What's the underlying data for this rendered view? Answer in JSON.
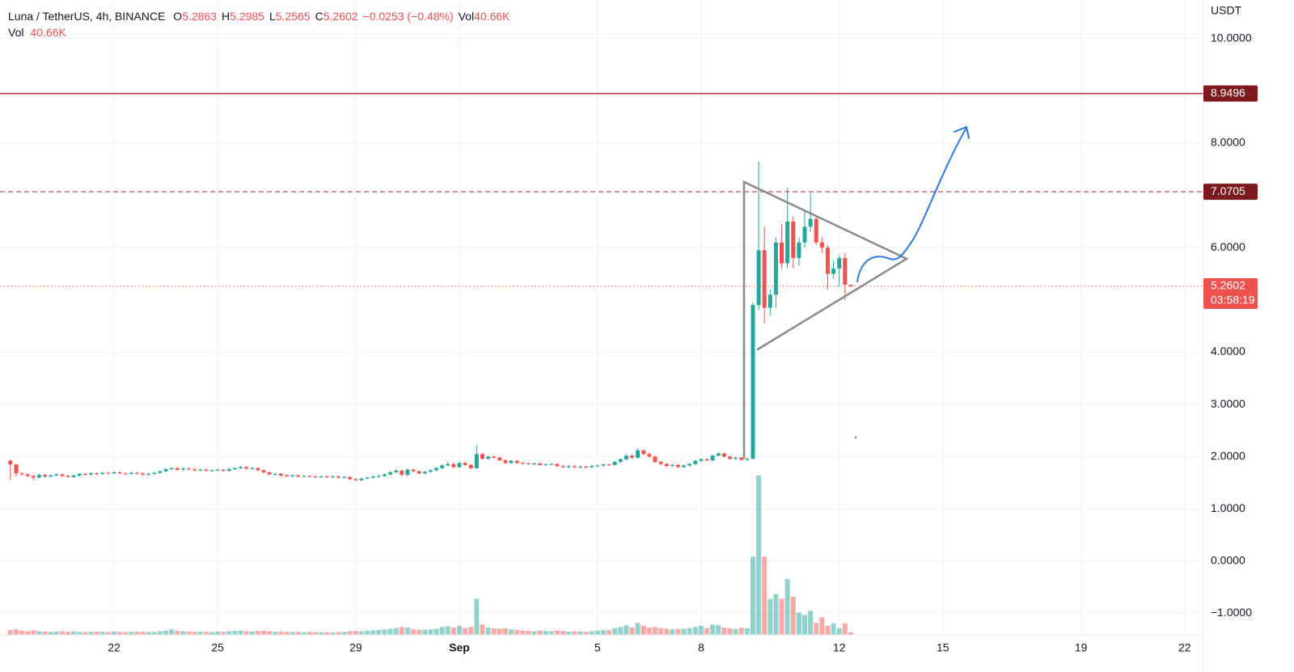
{
  "header": {
    "symbol": "Luna / TetherUS, 4h, BINANCE",
    "items": [
      {
        "key": "O",
        "value": "5.2863"
      },
      {
        "key": "H",
        "value": "5.2985"
      },
      {
        "key": "L",
        "value": "5.2565"
      },
      {
        "key": "C",
        "value": "5.2602"
      },
      {
        "key": "",
        "value": "−0.0253 (−0.48%)"
      },
      {
        "key": "Vol",
        "value": "40.66K"
      }
    ],
    "volume_key": "Vol",
    "volume_value": "40.66K"
  },
  "chart_data": {
    "type": "candlestick",
    "currency": "USDT",
    "ylim": [
      -1.41,
      10.74
    ],
    "yticks": [
      {
        "value": 10,
        "label": "10.0000"
      },
      {
        "value": 8,
        "label": "8.0000"
      },
      {
        "value": 6,
        "label": "6.0000"
      },
      {
        "value": 4,
        "label": "4.0000"
      },
      {
        "value": 3,
        "label": "3.0000"
      },
      {
        "value": 2,
        "label": "2.0000"
      },
      {
        "value": 1,
        "label": "1.0000"
      },
      {
        "value": 0,
        "label": "0.0000"
      },
      {
        "value": -1,
        "label": "−1.0000"
      }
    ],
    "xlim": [
      -1.81,
      207.27
    ],
    "xticks": [
      {
        "value": 18,
        "label": "22"
      },
      {
        "value": 36,
        "label": "25"
      },
      {
        "value": 60,
        "label": "29"
      },
      {
        "value": 78,
        "label": "Sep"
      },
      {
        "value": 102,
        "label": "5"
      },
      {
        "value": 120,
        "label": "8"
      },
      {
        "value": 144,
        "label": "12"
      },
      {
        "value": 162,
        "label": "15"
      },
      {
        "value": 186,
        "label": "19"
      },
      {
        "value": 204,
        "label": "22"
      }
    ],
    "grid": true,
    "up_color": "#26a69a",
    "down_color": "#ef5350",
    "ohlc": [
      [
        1.92,
        1.95,
        1.55,
        1.85
      ],
      [
        1.85,
        1.86,
        1.62,
        1.68
      ],
      [
        1.68,
        1.7,
        1.64,
        1.66
      ],
      [
        1.66,
        1.68,
        1.61,
        1.63
      ],
      [
        1.63,
        1.65,
        1.55,
        1.6
      ],
      [
        1.6,
        1.67,
        1.58,
        1.65
      ],
      [
        1.65,
        1.67,
        1.6,
        1.62
      ],
      [
        1.62,
        1.66,
        1.6,
        1.64
      ],
      [
        1.64,
        1.68,
        1.62,
        1.66
      ],
      [
        1.66,
        1.68,
        1.61,
        1.63
      ],
      [
        1.63,
        1.65,
        1.59,
        1.61
      ],
      [
        1.61,
        1.66,
        1.59,
        1.64
      ],
      [
        1.64,
        1.69,
        1.62,
        1.67
      ],
      [
        1.67,
        1.69,
        1.64,
        1.66
      ],
      [
        1.66,
        1.7,
        1.64,
        1.68
      ],
      [
        1.68,
        1.7,
        1.65,
        1.67
      ],
      [
        1.67,
        1.71,
        1.65,
        1.69
      ],
      [
        1.69,
        1.71,
        1.66,
        1.68
      ],
      [
        1.68,
        1.72,
        1.66,
        1.7
      ],
      [
        1.7,
        1.72,
        1.66,
        1.68
      ],
      [
        1.68,
        1.7,
        1.65,
        1.67
      ],
      [
        1.67,
        1.71,
        1.65,
        1.69
      ],
      [
        1.69,
        1.71,
        1.66,
        1.68
      ],
      [
        1.68,
        1.7,
        1.64,
        1.66
      ],
      [
        1.66,
        1.69,
        1.64,
        1.67
      ],
      [
        1.67,
        1.71,
        1.65,
        1.69
      ],
      [
        1.69,
        1.74,
        1.67,
        1.72
      ],
      [
        1.72,
        1.78,
        1.7,
        1.76
      ],
      [
        1.76,
        1.8,
        1.74,
        1.78
      ],
      [
        1.78,
        1.8,
        1.73,
        1.75
      ],
      [
        1.75,
        1.79,
        1.73,
        1.77
      ],
      [
        1.77,
        1.79,
        1.74,
        1.76
      ],
      [
        1.76,
        1.78,
        1.72,
        1.74
      ],
      [
        1.74,
        1.77,
        1.72,
        1.75
      ],
      [
        1.75,
        1.77,
        1.71,
        1.73
      ],
      [
        1.73,
        1.76,
        1.71,
        1.74
      ],
      [
        1.74,
        1.77,
        1.72,
        1.75
      ],
      [
        1.75,
        1.77,
        1.71,
        1.73
      ],
      [
        1.73,
        1.78,
        1.71,
        1.76
      ],
      [
        1.76,
        1.8,
        1.74,
        1.78
      ],
      [
        1.78,
        1.83,
        1.76,
        1.8
      ],
      [
        1.8,
        1.82,
        1.75,
        1.77
      ],
      [
        1.77,
        1.8,
        1.75,
        1.78
      ],
      [
        1.78,
        1.8,
        1.72,
        1.74
      ],
      [
        1.74,
        1.76,
        1.68,
        1.7
      ],
      [
        1.7,
        1.72,
        1.64,
        1.66
      ],
      [
        1.66,
        1.69,
        1.64,
        1.67
      ],
      [
        1.67,
        1.69,
        1.62,
        1.64
      ],
      [
        1.64,
        1.66,
        1.61,
        1.63
      ],
      [
        1.63,
        1.66,
        1.61,
        1.64
      ],
      [
        1.64,
        1.66,
        1.6,
        1.62
      ],
      [
        1.62,
        1.65,
        1.6,
        1.63
      ],
      [
        1.63,
        1.65,
        1.6,
        1.62
      ],
      [
        1.62,
        1.64,
        1.59,
        1.61
      ],
      [
        1.61,
        1.64,
        1.59,
        1.62
      ],
      [
        1.62,
        1.64,
        1.59,
        1.61
      ],
      [
        1.61,
        1.64,
        1.59,
        1.62
      ],
      [
        1.62,
        1.64,
        1.58,
        1.6
      ],
      [
        1.6,
        1.63,
        1.58,
        1.61
      ],
      [
        1.61,
        1.63,
        1.55,
        1.57
      ],
      [
        1.57,
        1.59,
        1.53,
        1.55
      ],
      [
        1.55,
        1.6,
        1.53,
        1.58
      ],
      [
        1.58,
        1.62,
        1.56,
        1.6
      ],
      [
        1.6,
        1.64,
        1.58,
        1.62
      ],
      [
        1.62,
        1.65,
        1.6,
        1.63
      ],
      [
        1.63,
        1.68,
        1.61,
        1.66
      ],
      [
        1.66,
        1.72,
        1.64,
        1.7
      ],
      [
        1.7,
        1.76,
        1.68,
        1.73
      ],
      [
        1.73,
        1.75,
        1.63,
        1.65
      ],
      [
        1.65,
        1.78,
        1.63,
        1.75
      ],
      [
        1.75,
        1.77,
        1.7,
        1.72
      ],
      [
        1.72,
        1.74,
        1.66,
        1.68
      ],
      [
        1.68,
        1.73,
        1.66,
        1.71
      ],
      [
        1.71,
        1.76,
        1.69,
        1.74
      ],
      [
        1.74,
        1.8,
        1.72,
        1.78
      ],
      [
        1.78,
        1.85,
        1.76,
        1.83
      ],
      [
        1.83,
        1.9,
        1.81,
        1.86
      ],
      [
        1.86,
        1.88,
        1.78,
        1.8
      ],
      [
        1.8,
        1.9,
        1.78,
        1.88
      ],
      [
        1.88,
        1.9,
        1.82,
        1.84
      ],
      [
        1.84,
        1.86,
        1.76,
        1.78
      ],
      [
        1.78,
        2.22,
        1.76,
        2.05
      ],
      [
        2.05,
        2.07,
        1.94,
        1.96
      ],
      [
        1.96,
        2.02,
        1.94,
        2.0
      ],
      [
        2.0,
        2.02,
        1.96,
        1.98
      ],
      [
        1.98,
        2.0,
        1.91,
        1.93
      ],
      [
        1.93,
        1.95,
        1.86,
        1.88
      ],
      [
        1.88,
        1.94,
        1.86,
        1.92
      ],
      [
        1.92,
        1.94,
        1.86,
        1.88
      ],
      [
        1.88,
        1.9,
        1.85,
        1.87
      ],
      [
        1.87,
        1.89,
        1.84,
        1.86
      ],
      [
        1.86,
        1.89,
        1.84,
        1.87
      ],
      [
        1.87,
        1.89,
        1.82,
        1.84
      ],
      [
        1.84,
        1.87,
        1.82,
        1.85
      ],
      [
        1.85,
        1.88,
        1.83,
        1.86
      ],
      [
        1.86,
        1.88,
        1.8,
        1.82
      ],
      [
        1.82,
        1.84,
        1.78,
        1.8
      ],
      [
        1.8,
        1.84,
        1.78,
        1.82
      ],
      [
        1.82,
        1.84,
        1.78,
        1.8
      ],
      [
        1.8,
        1.83,
        1.78,
        1.81
      ],
      [
        1.81,
        1.83,
        1.78,
        1.8
      ],
      [
        1.8,
        1.84,
        1.78,
        1.82
      ],
      [
        1.82,
        1.85,
        1.8,
        1.83
      ],
      [
        1.83,
        1.87,
        1.81,
        1.85
      ],
      [
        1.85,
        1.87,
        1.82,
        1.84
      ],
      [
        1.84,
        1.92,
        1.82,
        1.9
      ],
      [
        1.9,
        1.97,
        1.88,
        1.95
      ],
      [
        1.95,
        2.05,
        1.93,
        2.02
      ],
      [
        2.02,
        2.04,
        1.96,
        1.98
      ],
      [
        1.98,
        2.16,
        1.96,
        2.12
      ],
      [
        2.12,
        2.14,
        2.03,
        2.05
      ],
      [
        2.05,
        2.07,
        1.98,
        2.0
      ],
      [
        2.0,
        2.02,
        1.88,
        1.9
      ],
      [
        1.9,
        1.92,
        1.84,
        1.86
      ],
      [
        1.86,
        1.88,
        1.8,
        1.82
      ],
      [
        1.82,
        1.86,
        1.8,
        1.84
      ],
      [
        1.84,
        1.86,
        1.78,
        1.8
      ],
      [
        1.8,
        1.85,
        1.78,
        1.83
      ],
      [
        1.83,
        1.88,
        1.81,
        1.86
      ],
      [
        1.86,
        1.94,
        1.84,
        1.92
      ],
      [
        1.92,
        1.97,
        1.9,
        1.95
      ],
      [
        1.95,
        1.97,
        1.91,
        1.93
      ],
      [
        1.93,
        2.04,
        1.91,
        2.02
      ],
      [
        2.02,
        2.09,
        2.0,
        2.06
      ],
      [
        2.06,
        2.08,
        1.98,
        2.0
      ],
      [
        2.0,
        2.02,
        1.94,
        1.96
      ],
      [
        1.96,
        2.0,
        1.94,
        1.98
      ],
      [
        1.98,
        2.0,
        1.92,
        1.94
      ],
      [
        1.94,
        1.98,
        1.92,
        1.96
      ],
      [
        1.96,
        4.95,
        1.95,
        4.9
      ],
      [
        4.9,
        7.65,
        4.8,
        5.95
      ],
      [
        5.95,
        6.4,
        4.55,
        4.85
      ],
      [
        4.85,
        5.2,
        4.7,
        5.1
      ],
      [
        5.1,
        6.2,
        4.85,
        6.1
      ],
      [
        6.1,
        6.45,
        5.6,
        5.7
      ],
      [
        5.7,
        7.15,
        5.6,
        6.5
      ],
      [
        6.5,
        6.6,
        5.6,
        5.8
      ],
      [
        5.8,
        6.2,
        5.65,
        6.1
      ],
      [
        6.1,
        6.7,
        6.0,
        6.4
      ],
      [
        6.4,
        7.05,
        6.3,
        6.55
      ],
      [
        6.55,
        6.6,
        6.05,
        6.1
      ],
      [
        6.1,
        6.2,
        5.9,
        6.0
      ],
      [
        6.0,
        6.05,
        5.2,
        5.5
      ],
      [
        5.5,
        5.75,
        5.4,
        5.6
      ],
      [
        5.6,
        5.85,
        5.25,
        5.8
      ],
      [
        5.8,
        5.9,
        5.0,
        5.29
      ],
      [
        5.2863,
        5.2985,
        5.2565,
        5.2602
      ]
    ],
    "volume": [
      80000,
      90000,
      70000,
      60000,
      75000,
      60000,
      55000,
      50000,
      55000,
      60000,
      50000,
      55000,
      50000,
      45000,
      50000,
      55000,
      50000,
      45000,
      55000,
      50000,
      45000,
      50000,
      55000,
      50000,
      45000,
      50000,
      60000,
      70000,
      90000,
      65000,
      60000,
      55000,
      50000,
      55000,
      50000,
      45000,
      55000,
      50000,
      60000,
      65000,
      70000,
      60000,
      55000,
      65000,
      70000,
      60000,
      50000,
      55000,
      50000,
      45000,
      50000,
      45000,
      50000,
      45000,
      40000,
      45000,
      40000,
      45000,
      50000,
      60000,
      65000,
      60000,
      70000,
      75000,
      80000,
      90000,
      100000,
      110000,
      130000,
      120000,
      90000,
      80000,
      85000,
      90000,
      100000,
      130000,
      140000,
      120000,
      150000,
      110000,
      130000,
      600000,
      170000,
      120000,
      110000,
      100000,
      110000,
      90000,
      80000,
      70000,
      65000,
      60000,
      70000,
      65000,
      60000,
      70000,
      65000,
      55000,
      60000,
      55000,
      50000,
      60000,
      70000,
      80000,
      75000,
      110000,
      130000,
      160000,
      120000,
      200000,
      150000,
      120000,
      130000,
      110000,
      100000,
      90000,
      95000,
      100000,
      110000,
      130000,
      150000,
      110000,
      170000,
      160000,
      120000,
      110000,
      100000,
      120000,
      110000,
      1300000,
      2650000,
      1300000,
      600000,
      680000,
      600000,
      930000,
      630000,
      370000,
      330000,
      400000,
      200000,
      290000,
      150000,
      190000,
      110000,
      190000,
      40660
    ],
    "price_lines": [
      {
        "value": 8.9496,
        "style": "solid",
        "color": "#b2283a",
        "box": "#7d1a1f"
      },
      {
        "value": 7.0705,
        "style": "dashed",
        "color": "#b2283a",
        "box": "#7d1a1f"
      },
      {
        "value": 5.2602,
        "style": "dotted",
        "color": "#ef5350",
        "box": "#ef5350"
      }
    ],
    "countdown": "03:58:19"
  }
}
